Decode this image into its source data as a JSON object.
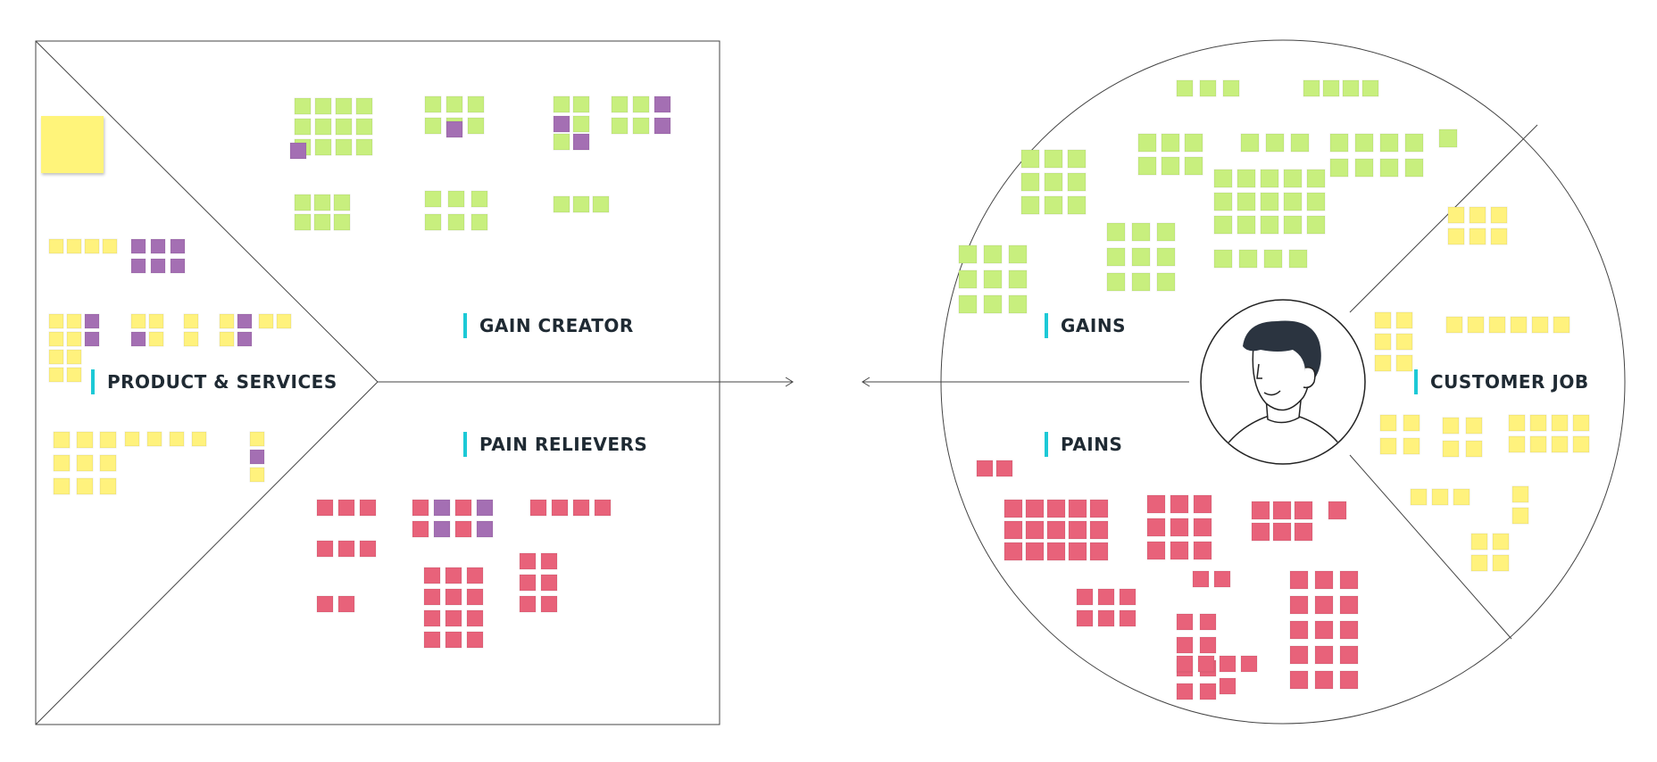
{
  "labels": {
    "gain_creator": "GAIN CREATOR",
    "product_services": "PRODUCT & SERVICES",
    "pain_relievers": "PAIN RELIEVERS",
    "gains": "GAINS",
    "customer_job": "CUSTOMER JOB",
    "pains": "PAINS"
  },
  "colors": {
    "accent": "#1cc9d6",
    "sticky_green": "#c8ef7e",
    "sticky_yellow": "#fff27d",
    "sticky_purple": "#a46fb3",
    "sticky_pink": "#e8627a",
    "line": "#444444",
    "face_hair": "#2b3440"
  },
  "icons": {
    "customer_avatar": "person-avatar-icon"
  }
}
